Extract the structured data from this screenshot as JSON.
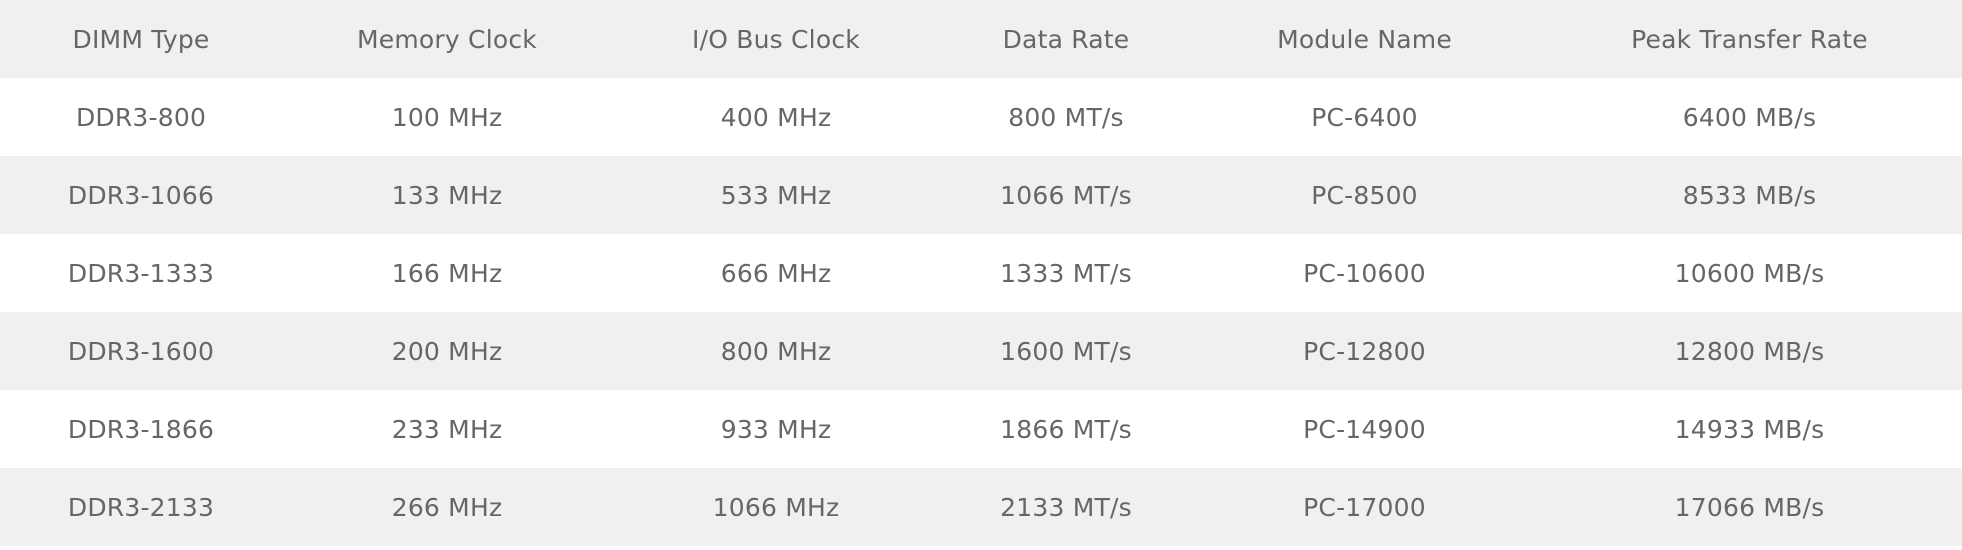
{
  "table": {
    "headers": [
      "DIMM Type",
      "Memory Clock",
      "I/O Bus Clock",
      "Data Rate",
      "Module Name",
      "Peak Transfer Rate"
    ],
    "rows": [
      [
        "DDR3-800",
        "100 MHz",
        "400 MHz",
        "800 MT/s",
        "PC-6400",
        "6400 MB/s"
      ],
      [
        "DDR3-1066",
        "133 MHz",
        "533 MHz",
        "1066 MT/s",
        "PC-8500",
        "8533 MB/s"
      ],
      [
        "DDR3-1333",
        "166 MHz",
        "666 MHz",
        "1333 MT/s",
        "PC-10600",
        "10600 MB/s"
      ],
      [
        "DDR3-1600",
        "200 MHz",
        "800 MHz",
        "1600 MT/s",
        "PC-12800",
        "12800 MB/s"
      ],
      [
        "DDR3-1866",
        "233 MHz",
        "933 MHz",
        "1866 MT/s",
        "PC-14900",
        "14933 MB/s"
      ],
      [
        "DDR3-2133",
        "266 MHz",
        "1066 MHz",
        "2133 MT/s",
        "PC-17000",
        "17066 MB/s"
      ]
    ]
  },
  "colors": {
    "text": "#666666",
    "stripe": "#f0f0f0",
    "background": "#ffffff"
  }
}
